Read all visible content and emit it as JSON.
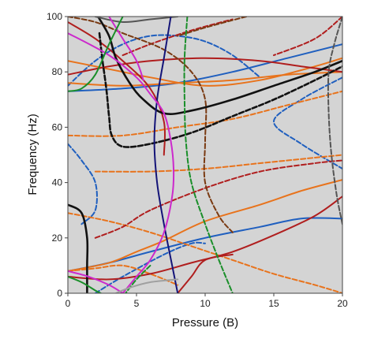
{
  "chart_data": {
    "type": "line",
    "title": "",
    "xlabel": "Pressure (B)",
    "ylabel": "Frequency (Hz)",
    "xlim": [
      0,
      20
    ],
    "ylim": [
      0,
      100
    ],
    "x_ticks": [
      0,
      5,
      10,
      15,
      20
    ],
    "y_ticks": [
      0,
      20,
      40,
      60,
      80,
      100
    ],
    "grid": false,
    "legend": "none",
    "plot_background": "#d4d4d4",
    "series": [
      {
        "color": "#1f5fbf",
        "dash": "solid",
        "points": [
          [
            0,
            73
          ],
          [
            4,
            74
          ],
          [
            8,
            76
          ],
          [
            12,
            80
          ],
          [
            16,
            85
          ],
          [
            20,
            90
          ]
        ]
      },
      {
        "color": "#1f5fbf",
        "dash": "solid",
        "points": [
          [
            0,
            8
          ],
          [
            3,
            11
          ],
          [
            6,
            15
          ],
          [
            10,
            20
          ],
          [
            14,
            24
          ],
          [
            17,
            27
          ],
          [
            20,
            27
          ]
        ]
      },
      {
        "color": "#1f5fbf",
        "dash": "dashed",
        "points": [
          [
            0,
            75
          ],
          [
            2,
            84
          ],
          [
            4,
            90
          ],
          [
            6,
            93
          ],
          [
            8,
            93
          ],
          [
            10,
            91
          ],
          [
            12,
            86
          ],
          [
            14,
            78
          ]
        ]
      },
      {
        "color": "#1f5fbf",
        "dash": "dashed",
        "points": [
          [
            0,
            54
          ],
          [
            1,
            48
          ],
          [
            2,
            40
          ],
          [
            2,
            30
          ],
          [
            1,
            25
          ]
        ]
      },
      {
        "color": "#1f5fbf",
        "dash": "dashed",
        "points": [
          [
            20,
            78
          ],
          [
            17,
            70
          ],
          [
            15,
            62
          ],
          [
            17,
            54
          ],
          [
            20,
            45
          ]
        ]
      },
      {
        "color": "#1f5fbf",
        "dash": "dashed",
        "points": [
          [
            2,
            0
          ],
          [
            4,
            6
          ],
          [
            7,
            14
          ],
          [
            9,
            18
          ],
          [
            10,
            18
          ]
        ]
      },
      {
        "color": "#e8731c",
        "dash": "solid",
        "points": [
          [
            0,
            76
          ],
          [
            4,
            75
          ],
          [
            8,
            76
          ],
          [
            12,
            77
          ],
          [
            16,
            79
          ],
          [
            20,
            80
          ]
        ]
      },
      {
        "color": "#e8731c",
        "dash": "solid",
        "points": [
          [
            0,
            8
          ],
          [
            3,
            11
          ],
          [
            5,
            15
          ],
          [
            7,
            19
          ],
          [
            10,
            26
          ],
          [
            14,
            32
          ],
          [
            17,
            37
          ],
          [
            20,
            41
          ]
        ]
      },
      {
        "color": "#e8731c",
        "dash": "solid",
        "points": [
          [
            0,
            84
          ],
          [
            2,
            82
          ],
          [
            4,
            80
          ],
          [
            6,
            78
          ],
          [
            10,
            75
          ],
          [
            14,
            77
          ],
          [
            18,
            82
          ],
          [
            20,
            85
          ]
        ]
      },
      {
        "color": "#e8731c",
        "dash": "dashed",
        "points": [
          [
            0,
            57
          ],
          [
            4,
            57
          ],
          [
            8,
            60
          ],
          [
            12,
            63
          ],
          [
            16,
            68
          ],
          [
            20,
            73
          ]
        ]
      },
      {
        "color": "#e8731c",
        "dash": "dashed",
        "points": [
          [
            2,
            44
          ],
          [
            6,
            44
          ],
          [
            10,
            45
          ],
          [
            14,
            47
          ],
          [
            18,
            49
          ],
          [
            20,
            50
          ]
        ]
      },
      {
        "color": "#e8731c",
        "dash": "dashed",
        "points": [
          [
            0,
            29
          ],
          [
            3,
            26
          ],
          [
            6,
            22
          ],
          [
            9,
            17
          ],
          [
            12,
            12
          ],
          [
            15,
            7
          ],
          [
            18,
            3
          ],
          [
            20,
            0
          ]
        ]
      },
      {
        "color": "#e8731c",
        "dash": "dashed",
        "points": [
          [
            0,
            8
          ],
          [
            2,
            9
          ],
          [
            4,
            10
          ],
          [
            6,
            7
          ],
          [
            8,
            3
          ]
        ]
      },
      {
        "color": "#b01e1e",
        "dash": "solid",
        "points": [
          [
            0,
            79
          ],
          [
            3,
            82
          ],
          [
            6,
            84
          ],
          [
            10,
            85
          ],
          [
            14,
            84
          ],
          [
            17,
            82
          ],
          [
            20,
            80
          ]
        ]
      },
      {
        "color": "#b01e1e",
        "dash": "solid",
        "points": [
          [
            0,
            6
          ],
          [
            3,
            5
          ],
          [
            6,
            7
          ],
          [
            9,
            11
          ],
          [
            12,
            15
          ],
          [
            15,
            21
          ],
          [
            18,
            28
          ],
          [
            20,
            35
          ]
        ]
      },
      {
        "color": "#b01e1e",
        "dash": "solid",
        "points": [
          [
            8,
            0
          ],
          [
            9,
            6
          ],
          [
            10,
            12
          ],
          [
            12,
            14
          ]
        ]
      },
      {
        "color": "#b01e1e",
        "dash": "solid",
        "points": [
          [
            0,
            98
          ],
          [
            2,
            92
          ],
          [
            4,
            84
          ],
          [
            6,
            74
          ],
          [
            7,
            62
          ],
          [
            7,
            50
          ]
        ]
      },
      {
        "color": "#b01e1e",
        "dash": "dashed",
        "points": [
          [
            2,
            20
          ],
          [
            4,
            24
          ],
          [
            6,
            30
          ],
          [
            10,
            38
          ],
          [
            14,
            44
          ],
          [
            18,
            47
          ],
          [
            20,
            48
          ]
        ]
      },
      {
        "color": "#b01e1e",
        "dash": "dashed",
        "points": [
          [
            4,
            86
          ],
          [
            6,
            90
          ],
          [
            9,
            95
          ],
          [
            12,
            99
          ]
        ]
      },
      {
        "color": "#b01e1e",
        "dash": "dashed",
        "points": [
          [
            20,
            100
          ],
          [
            18,
            92
          ],
          [
            15,
            86
          ]
        ]
      },
      {
        "color": "#7a3a12",
        "dash": "dashed",
        "points": [
          [
            0,
            100
          ],
          [
            2,
            98
          ],
          [
            4,
            94
          ],
          [
            7,
            88
          ],
          [
            9,
            80
          ],
          [
            10,
            70
          ],
          [
            10,
            55
          ],
          [
            10,
            40
          ],
          [
            11,
            28
          ],
          [
            12,
            22
          ]
        ]
      },
      {
        "color": "#7a3a12",
        "dash": "dashed",
        "points": [
          [
            13,
            100
          ],
          [
            10,
            96
          ],
          [
            8,
            93
          ]
        ]
      },
      {
        "color": "#111111",
        "dash": "solid",
        "points": [
          [
            2.2,
            100
          ],
          [
            3.0,
            93
          ],
          [
            3.5,
            85
          ],
          [
            4.5,
            76
          ],
          [
            5.5,
            70
          ],
          [
            7,
            65
          ],
          [
            9,
            66
          ],
          [
            12,
            70
          ],
          [
            15,
            75
          ],
          [
            18,
            80
          ],
          [
            20,
            84
          ]
        ]
      },
      {
        "color": "#111111",
        "dash": "solid",
        "points": [
          [
            0,
            32
          ],
          [
            1,
            29
          ],
          [
            1.4,
            20
          ],
          [
            1.4,
            10
          ],
          [
            1.4,
            0
          ]
        ]
      },
      {
        "color": "#111111",
        "dash": "dashed",
        "points": [
          [
            2.3,
            94
          ],
          [
            2.5,
            85
          ],
          [
            2.8,
            74
          ],
          [
            3.0,
            64
          ],
          [
            3.2,
            57
          ],
          [
            4,
            53
          ],
          [
            6,
            54
          ],
          [
            9,
            58
          ],
          [
            12,
            64
          ],
          [
            15,
            70
          ],
          [
            18,
            77
          ],
          [
            20,
            82
          ]
        ]
      },
      {
        "color": "#555555",
        "dash": "dashed",
        "points": [
          [
            20,
            100
          ],
          [
            19.4,
            90
          ],
          [
            19.0,
            80
          ],
          [
            19.0,
            65
          ],
          [
            19.2,
            50
          ],
          [
            19.6,
            35
          ],
          [
            20,
            25
          ]
        ]
      },
      {
        "color": "#555555",
        "dash": "solid",
        "points": [
          [
            2,
            100
          ],
          [
            4,
            98
          ],
          [
            6,
            99
          ],
          [
            8,
            100
          ]
        ]
      },
      {
        "color": "#141478",
        "dash": "solid",
        "points": [
          [
            7.5,
            100
          ],
          [
            7,
            85
          ],
          [
            6.5,
            70
          ],
          [
            6.3,
            55
          ],
          [
            6.5,
            40
          ],
          [
            7,
            25
          ],
          [
            7.6,
            10
          ],
          [
            8,
            0
          ]
        ]
      },
      {
        "color": "#cc29cc",
        "dash": "solid",
        "points": [
          [
            0,
            94
          ],
          [
            3,
            86
          ],
          [
            5,
            78
          ],
          [
            6,
            72
          ],
          [
            7,
            65
          ],
          [
            7.5,
            55
          ],
          [
            7.7,
            45
          ],
          [
            7.6,
            35
          ],
          [
            7,
            22
          ],
          [
            6,
            12
          ],
          [
            5,
            6
          ],
          [
            4,
            0
          ]
        ]
      },
      {
        "color": "#cc29cc",
        "dash": "solid",
        "points": [
          [
            0,
            8
          ],
          [
            1.5,
            6
          ],
          [
            3,
            3
          ],
          [
            4,
            0
          ]
        ]
      },
      {
        "color": "#cc29cc",
        "dash": "solid",
        "points": [
          [
            3,
            100
          ],
          [
            4,
            92
          ],
          [
            5,
            84
          ],
          [
            5.5,
            77
          ]
        ]
      },
      {
        "color": "#1a8f2a",
        "dash": "solid",
        "points": [
          [
            0,
            73
          ],
          [
            1,
            74
          ],
          [
            2,
            79
          ],
          [
            3,
            90
          ],
          [
            4,
            100
          ]
        ]
      },
      {
        "color": "#1a8f2a",
        "dash": "solid",
        "points": [
          [
            0,
            6
          ],
          [
            1,
            4
          ],
          [
            2,
            1
          ],
          [
            2.4,
            0
          ]
        ]
      },
      {
        "color": "#1a8f2a",
        "dash": "dashed",
        "points": [
          [
            8.7,
            100
          ],
          [
            8.5,
            85
          ],
          [
            8.5,
            70
          ],
          [
            8.6,
            55
          ],
          [
            9,
            40
          ],
          [
            10,
            25
          ],
          [
            11,
            12
          ],
          [
            12,
            0
          ]
        ]
      },
      {
        "color": "#1a8f2a",
        "dash": "dashed",
        "points": [
          [
            6,
            10
          ],
          [
            5,
            5
          ],
          [
            4.2,
            0
          ]
        ]
      },
      {
        "color": "#a0a0a0",
        "dash": "solid",
        "points": [
          [
            3.5,
            0
          ],
          [
            4.5,
            2
          ],
          [
            6,
            4
          ],
          [
            8,
            5
          ]
        ]
      }
    ]
  }
}
